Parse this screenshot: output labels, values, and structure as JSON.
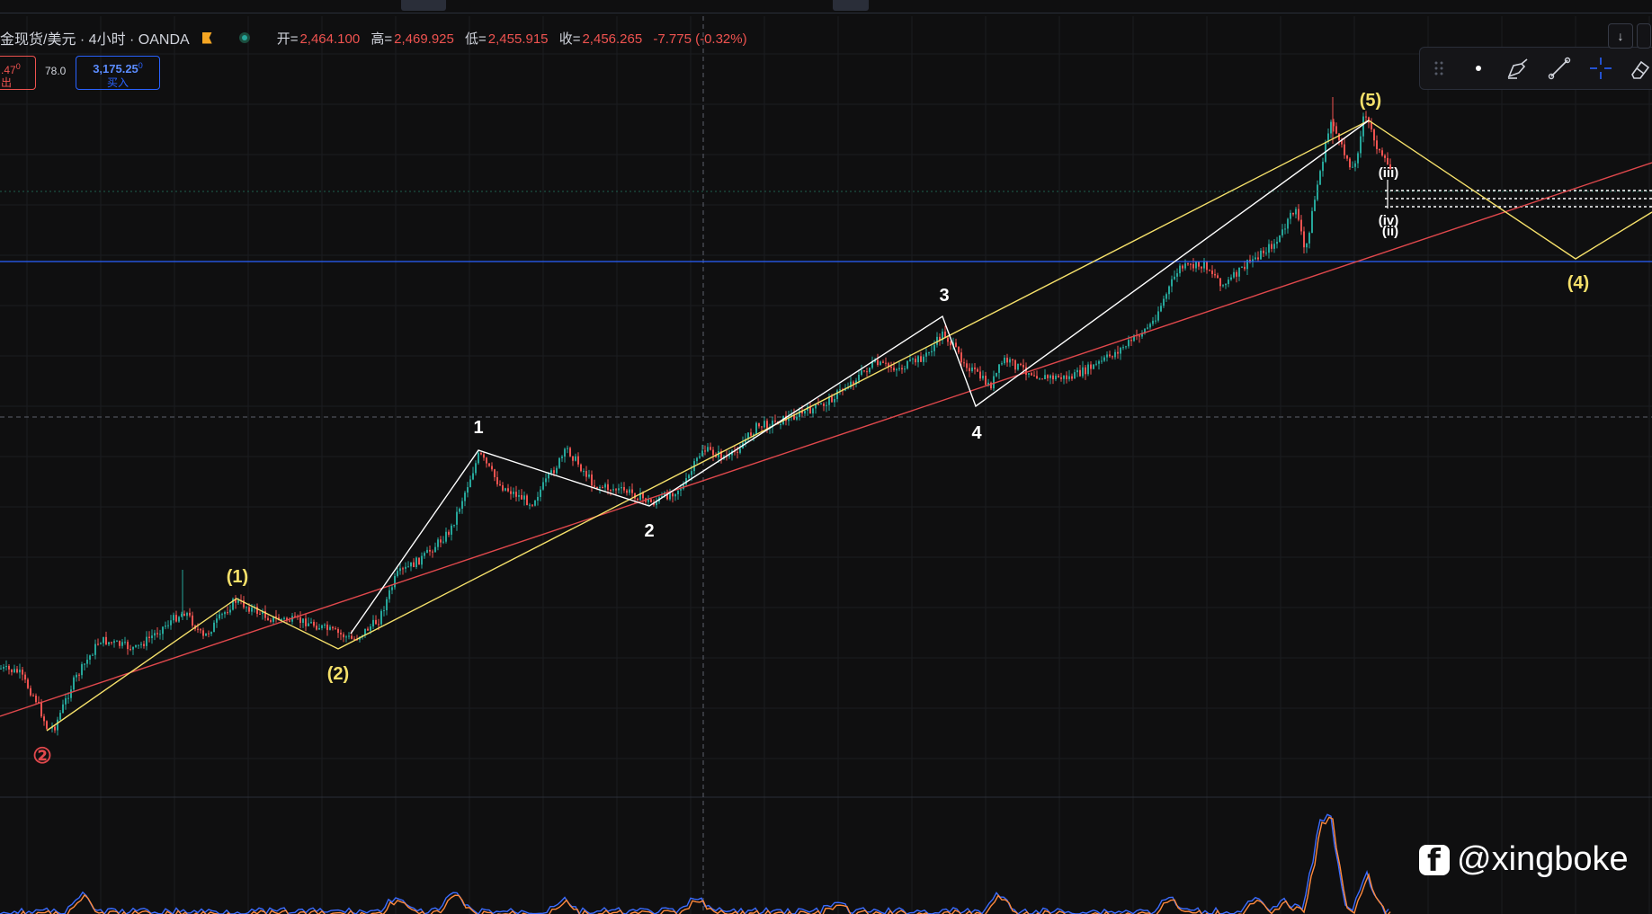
{
  "header": {
    "symbol": "金现货/美元 · 4小时 · OANDA",
    "ohlc": {
      "open_label": "开=",
      "open": "2,464.100",
      "high_label": "高=",
      "high": "2,469.925",
      "low_label": "低=",
      "low": "2,455.915",
      "close_label": "收=",
      "close": "2,456.265",
      "change": "-7.775 (-0.32%)"
    }
  },
  "trade": {
    "sell_price": ".47",
    "sell_sup": "0",
    "sell_label": "出",
    "spread": "78.0",
    "buy_price": "3,175.25",
    "buy_sup": "0",
    "buy_label": "买入"
  },
  "icons": [
    "drag-handle-icon",
    "dot-icon",
    "brush-pen-icon",
    "trend-line-icon",
    "crosshair-icon",
    "eraser-icon",
    "arrow-down-icon",
    "settings-square-icon"
  ],
  "colors": {
    "background": "#0f0f10",
    "up_candle": "#26a69a",
    "down_candle": "#ef5350",
    "wave_white": "#ffffff",
    "wave_yellow": "#f5e06a",
    "trendline_red": "#e0484c",
    "hline_blue": "#2962ff",
    "osc_blue": "#3b6cff",
    "osc_orange": "#ff8a3d"
  },
  "chart_data": {
    "type": "line",
    "price_series": "candlestick",
    "wave_labels": {
      "circle_2": "②",
      "major": [
        "(1)",
        "(2)",
        "(5)",
        "(4)"
      ],
      "minor": [
        "1",
        "2",
        "3",
        "4"
      ],
      "sub": [
        "(ii)",
        "(iv)",
        "(iii)"
      ]
    },
    "watermark": "@xingboke"
  }
}
